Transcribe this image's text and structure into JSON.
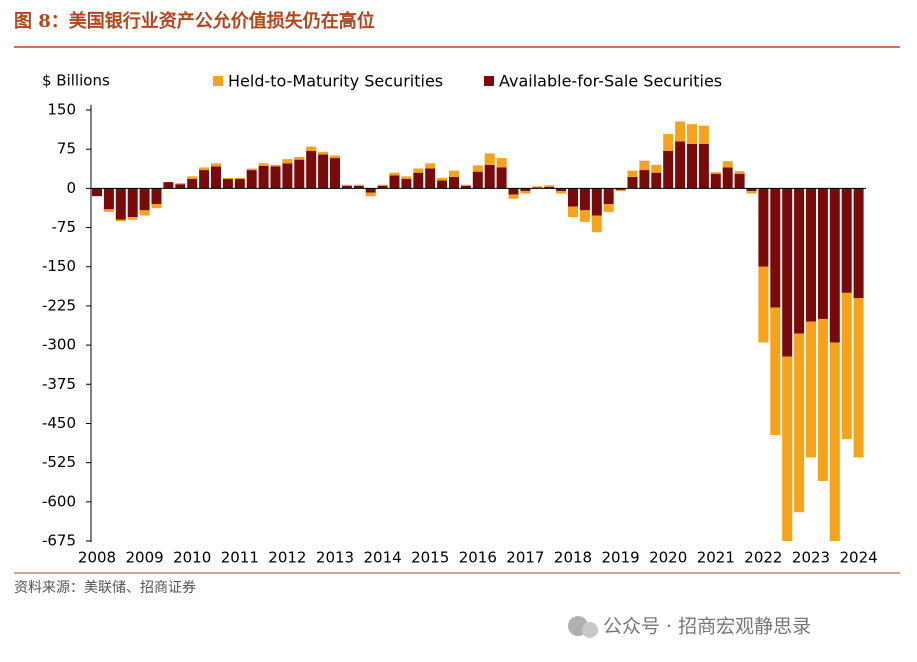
{
  "chart_data": {
    "type": "stacked_bar",
    "title": "图 8：美国银行业资产公允价值损失仍在高位",
    "y_axis_label": "$ Billions",
    "source": "资料来源：美联储、招商证券",
    "watermark": "公众号 · 招商宏观静思录",
    "categories": [
      "2008",
      null,
      null,
      null,
      "2009",
      null,
      null,
      null,
      "2010",
      null,
      null,
      null,
      "2011",
      null,
      null,
      null,
      "2012",
      null,
      null,
      null,
      "2013",
      null,
      null,
      null,
      "2014",
      null,
      null,
      null,
      "2015",
      null,
      null,
      null,
      "2016",
      null,
      null,
      null,
      "2017",
      null,
      null,
      null,
      "2018",
      null,
      null,
      null,
      "2019",
      null,
      null,
      null,
      "2020",
      null,
      null,
      null,
      "2021",
      null,
      null,
      null,
      "2022",
      null,
      null,
      null,
      "2023",
      null,
      null,
      null,
      "2024"
    ],
    "series": [
      {
        "name": "Held-to-Maturity Securities",
        "color": "#f7a21b",
        "values": [
          0,
          -5,
          -3,
          -5,
          -10,
          -8,
          0,
          2,
          5,
          5,
          6,
          2,
          2,
          3,
          5,
          3,
          8,
          5,
          8,
          5,
          5,
          2,
          2,
          -7,
          2,
          5,
          5,
          8,
          10,
          5,
          12,
          2,
          12,
          22,
          18,
          -8,
          -5,
          2,
          3,
          -5,
          -20,
          -22,
          -32,
          -15,
          -2,
          12,
          18,
          15,
          32,
          38,
          38,
          35,
          3,
          12,
          5,
          -5,
          -145,
          -244,
          -353,
          -342,
          -260,
          -310,
          -380,
          -280,
          -305
        ]
      },
      {
        "name": "Available-for-Sale Securities",
        "color": "#7a0a0a",
        "values": [
          -15,
          -40,
          -60,
          -55,
          -42,
          -30,
          12,
          8,
          18,
          35,
          42,
          18,
          18,
          35,
          43,
          42,
          48,
          55,
          72,
          65,
          58,
          5,
          5,
          -8,
          5,
          25,
          18,
          30,
          38,
          15,
          22,
          5,
          32,
          45,
          40,
          -12,
          -5,
          2,
          3,
          -5,
          -35,
          -42,
          -52,
          -30,
          -3,
          22,
          35,
          30,
          72,
          90,
          85,
          85,
          28,
          40,
          28,
          -5,
          -150,
          -228,
          -322,
          -278,
          -255,
          -250,
          -295,
          -200,
          -210
        ]
      }
    ],
    "stack_order": [
      1,
      0
    ],
    "ylim": [
      -675,
      150
    ],
    "yticks": [
      150,
      75,
      0,
      -75,
      -150,
      -225,
      -300,
      -375,
      -450,
      -525,
      -600,
      -675
    ]
  }
}
